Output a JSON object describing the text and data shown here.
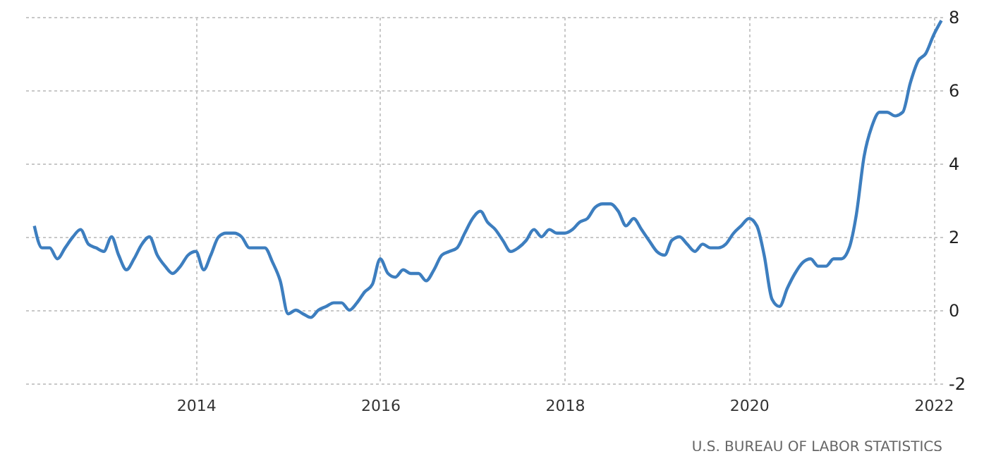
{
  "chart_data": {
    "type": "line",
    "x": [
      "2012-04",
      "2012-05",
      "2012-06",
      "2012-07",
      "2012-08",
      "2012-09",
      "2012-10",
      "2012-11",
      "2012-12",
      "2013-01",
      "2013-02",
      "2013-03",
      "2013-04",
      "2013-05",
      "2013-06",
      "2013-07",
      "2013-08",
      "2013-09",
      "2013-10",
      "2013-11",
      "2013-12",
      "2014-01",
      "2014-02",
      "2014-03",
      "2014-04",
      "2014-05",
      "2014-06",
      "2014-07",
      "2014-08",
      "2014-09",
      "2014-10",
      "2014-11",
      "2014-12",
      "2015-01",
      "2015-02",
      "2015-03",
      "2015-04",
      "2015-05",
      "2015-06",
      "2015-07",
      "2015-08",
      "2015-09",
      "2015-10",
      "2015-11",
      "2015-12",
      "2016-01",
      "2016-02",
      "2016-03",
      "2016-04",
      "2016-05",
      "2016-06",
      "2016-07",
      "2016-08",
      "2016-09",
      "2016-10",
      "2016-11",
      "2016-12",
      "2017-01",
      "2017-02",
      "2017-03",
      "2017-04",
      "2017-05",
      "2017-06",
      "2017-07",
      "2017-08",
      "2017-09",
      "2017-10",
      "2017-11",
      "2017-12",
      "2018-01",
      "2018-02",
      "2018-03",
      "2018-04",
      "2018-05",
      "2018-06",
      "2018-07",
      "2018-08",
      "2018-09",
      "2018-10",
      "2018-11",
      "2018-12",
      "2019-01",
      "2019-02",
      "2019-03",
      "2019-04",
      "2019-05",
      "2019-06",
      "2019-07",
      "2019-08",
      "2019-09",
      "2019-10",
      "2019-11",
      "2019-12",
      "2020-01",
      "2020-02",
      "2020-03",
      "2020-04",
      "2020-05",
      "2020-06",
      "2020-07",
      "2020-08",
      "2020-09",
      "2020-10",
      "2020-11",
      "2020-12",
      "2021-01",
      "2021-02",
      "2021-03",
      "2021-04",
      "2021-05",
      "2021-06",
      "2021-07",
      "2021-08",
      "2021-09",
      "2021-10",
      "2021-11",
      "2021-12",
      "2022-01",
      "2022-02"
    ],
    "series": [
      {
        "color": "#3d7ebf",
        "values": [
          2.3,
          1.7,
          1.7,
          1.4,
          1.7,
          2.0,
          2.2,
          1.8,
          1.7,
          1.6,
          2.0,
          1.5,
          1.1,
          1.4,
          1.8,
          2.0,
          1.5,
          1.2,
          1.0,
          1.2,
          1.5,
          1.6,
          1.1,
          1.5,
          2.0,
          2.1,
          2.1,
          2.0,
          1.7,
          1.7,
          1.7,
          1.3,
          0.8,
          -0.1,
          0.0,
          -0.1,
          -0.2,
          0.0,
          0.1,
          0.2,
          0.2,
          0.0,
          0.2,
          0.5,
          0.7,
          1.4,
          1.0,
          0.9,
          1.1,
          1.0,
          1.0,
          0.8,
          1.1,
          1.5,
          1.6,
          1.7,
          2.1,
          2.5,
          2.7,
          2.4,
          2.2,
          1.9,
          1.6,
          1.7,
          1.9,
          2.2,
          2.0,
          2.2,
          2.1,
          2.1,
          2.2,
          2.4,
          2.5,
          2.8,
          2.9,
          2.9,
          2.7,
          2.3,
          2.5,
          2.2,
          1.9,
          1.6,
          1.5,
          1.9,
          2.0,
          1.8,
          1.6,
          1.8,
          1.7,
          1.7,
          1.8,
          2.1,
          2.3,
          2.5,
          2.3,
          1.5,
          0.3,
          0.1,
          0.6,
          1.0,
          1.3,
          1.4,
          1.2,
          1.2,
          1.4,
          1.4,
          1.7,
          2.6,
          4.2,
          5.0,
          5.4,
          5.4,
          5.3,
          5.4,
          6.2,
          6.8,
          7.0,
          7.5,
          7.9
        ]
      }
    ],
    "xlim": [
      "2012-02-20",
      "2022-02-05"
    ],
    "xticks": [
      {
        "value": "2014-01-01",
        "label": "2014"
      },
      {
        "value": "2016-01-01",
        "label": "2016"
      },
      {
        "value": "2018-01-01",
        "label": "2018"
      },
      {
        "value": "2020-01-01",
        "label": "2020"
      },
      {
        "value": "2022-01-01",
        "label": "2022"
      }
    ],
    "ylim": [
      -2,
      8
    ],
    "yticks": [
      -2,
      0,
      2,
      4,
      6,
      8
    ],
    "grid": true,
    "marker": "none",
    "line_style": "solid",
    "annotations": [
      "U.S. BUREAU OF LABOR STATISTICS"
    ]
  }
}
